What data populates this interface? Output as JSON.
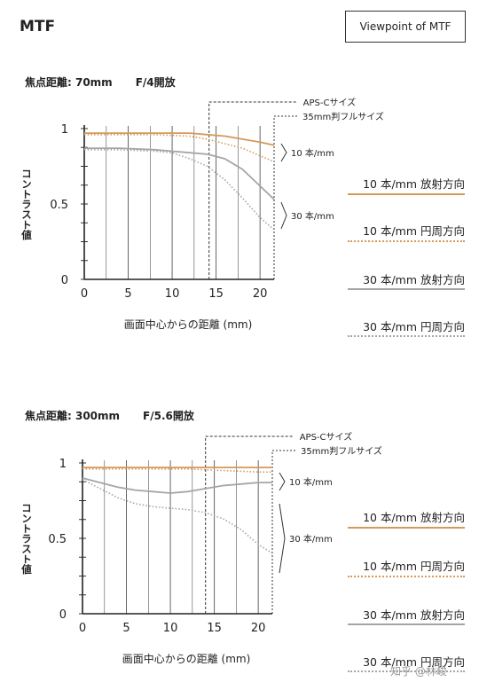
{
  "header": {
    "title": "MTF",
    "viewpoint_button": "Viewpoint of MTF"
  },
  "colors": {
    "orange": "#d49a5a",
    "gray": "#a5a5a5"
  },
  "legend_labels": [
    "10 本/mm 放射方向",
    "10 本/mm 円周方向",
    "30 本/mm 放射方向",
    "30 本/mm 円周方向"
  ],
  "watermark": "知乎 @林峻",
  "chart_data": [
    {
      "type": "line",
      "focal_label": "焦点距離: 70mm",
      "aperture_label": "F/4開放",
      "xlabel": "画面中心からの距離 (mm)",
      "ylabel": "コントラスト値",
      "xlim": [
        0,
        21.6
      ],
      "ylim": [
        0,
        1
      ],
      "xticks": [
        0,
        5,
        10,
        15,
        20
      ],
      "yticks": [
        0,
        0.5,
        1
      ],
      "ytick_labels": [
        "0",
        "0.5",
        "1"
      ],
      "aps_c_x": 14.2,
      "full_frame_x": 21.6,
      "aps_c_label": "APS-Cサイズ",
      "full_frame_label": "35mm判フルサイズ",
      "group_label_10": "10 本/mm",
      "group_label_30": "30 本/mm",
      "series": [
        {
          "style": "orange-solid",
          "x": [
            0,
            4,
            8,
            12,
            14,
            16,
            18,
            20,
            21.6
          ],
          "y": [
            0.97,
            0.97,
            0.97,
            0.97,
            0.96,
            0.95,
            0.93,
            0.91,
            0.89
          ]
        },
        {
          "style": "orange-dotted",
          "x": [
            0,
            4,
            8,
            12,
            14,
            16,
            18,
            20,
            21.6
          ],
          "y": [
            0.96,
            0.96,
            0.96,
            0.95,
            0.93,
            0.9,
            0.87,
            0.82,
            0.78
          ]
        },
        {
          "style": "gray-solid",
          "x": [
            0,
            4,
            8,
            10,
            12,
            14,
            16,
            18,
            20,
            21.6
          ],
          "y": [
            0.87,
            0.87,
            0.86,
            0.85,
            0.84,
            0.83,
            0.8,
            0.73,
            0.62,
            0.53
          ]
        },
        {
          "style": "gray-dotted",
          "x": [
            0,
            4,
            8,
            10,
            12,
            14,
            16,
            18,
            20,
            21.6
          ],
          "y": [
            0.86,
            0.86,
            0.85,
            0.84,
            0.8,
            0.75,
            0.66,
            0.54,
            0.41,
            0.33
          ]
        }
      ]
    },
    {
      "type": "line",
      "focal_label": "焦点距離: 300mm",
      "aperture_label": "F/5.6開放",
      "xlabel": "画面中心からの距離 (mm)",
      "ylabel": "コントラスト値",
      "xlim": [
        0,
        21.6
      ],
      "ylim": [
        0,
        1
      ],
      "xticks": [
        0,
        5,
        10,
        15,
        20
      ],
      "yticks": [
        0,
        0.5,
        1
      ],
      "ytick_labels": [
        "0",
        "0.5",
        "1"
      ],
      "aps_c_x": 14.0,
      "full_frame_x": 21.6,
      "aps_c_label": "APS-Cサイズ",
      "full_frame_label": "35mm判フルサイズ",
      "group_label_10": "10 本/mm",
      "group_label_30": "30 本/mm",
      "series": [
        {
          "style": "orange-solid",
          "x": [
            0,
            4,
            8,
            12,
            16,
            20,
            21.6
          ],
          "y": [
            0.97,
            0.97,
            0.97,
            0.97,
            0.97,
            0.97,
            0.97
          ]
        },
        {
          "style": "orange-dotted",
          "x": [
            0,
            4,
            8,
            12,
            16,
            20,
            21.6
          ],
          "y": [
            0.96,
            0.96,
            0.96,
            0.96,
            0.95,
            0.94,
            0.94
          ]
        },
        {
          "style": "gray-solid",
          "x": [
            0,
            2,
            4,
            6,
            8,
            10,
            12,
            14,
            16,
            18,
            20,
            21.6
          ],
          "y": [
            0.9,
            0.87,
            0.84,
            0.82,
            0.81,
            0.8,
            0.81,
            0.83,
            0.85,
            0.86,
            0.87,
            0.87
          ]
        },
        {
          "style": "gray-dotted",
          "x": [
            0,
            2,
            4,
            6,
            8,
            10,
            12,
            14,
            16,
            18,
            20,
            21.6
          ],
          "y": [
            0.89,
            0.83,
            0.77,
            0.73,
            0.71,
            0.7,
            0.69,
            0.67,
            0.63,
            0.56,
            0.46,
            0.4
          ]
        }
      ]
    }
  ]
}
